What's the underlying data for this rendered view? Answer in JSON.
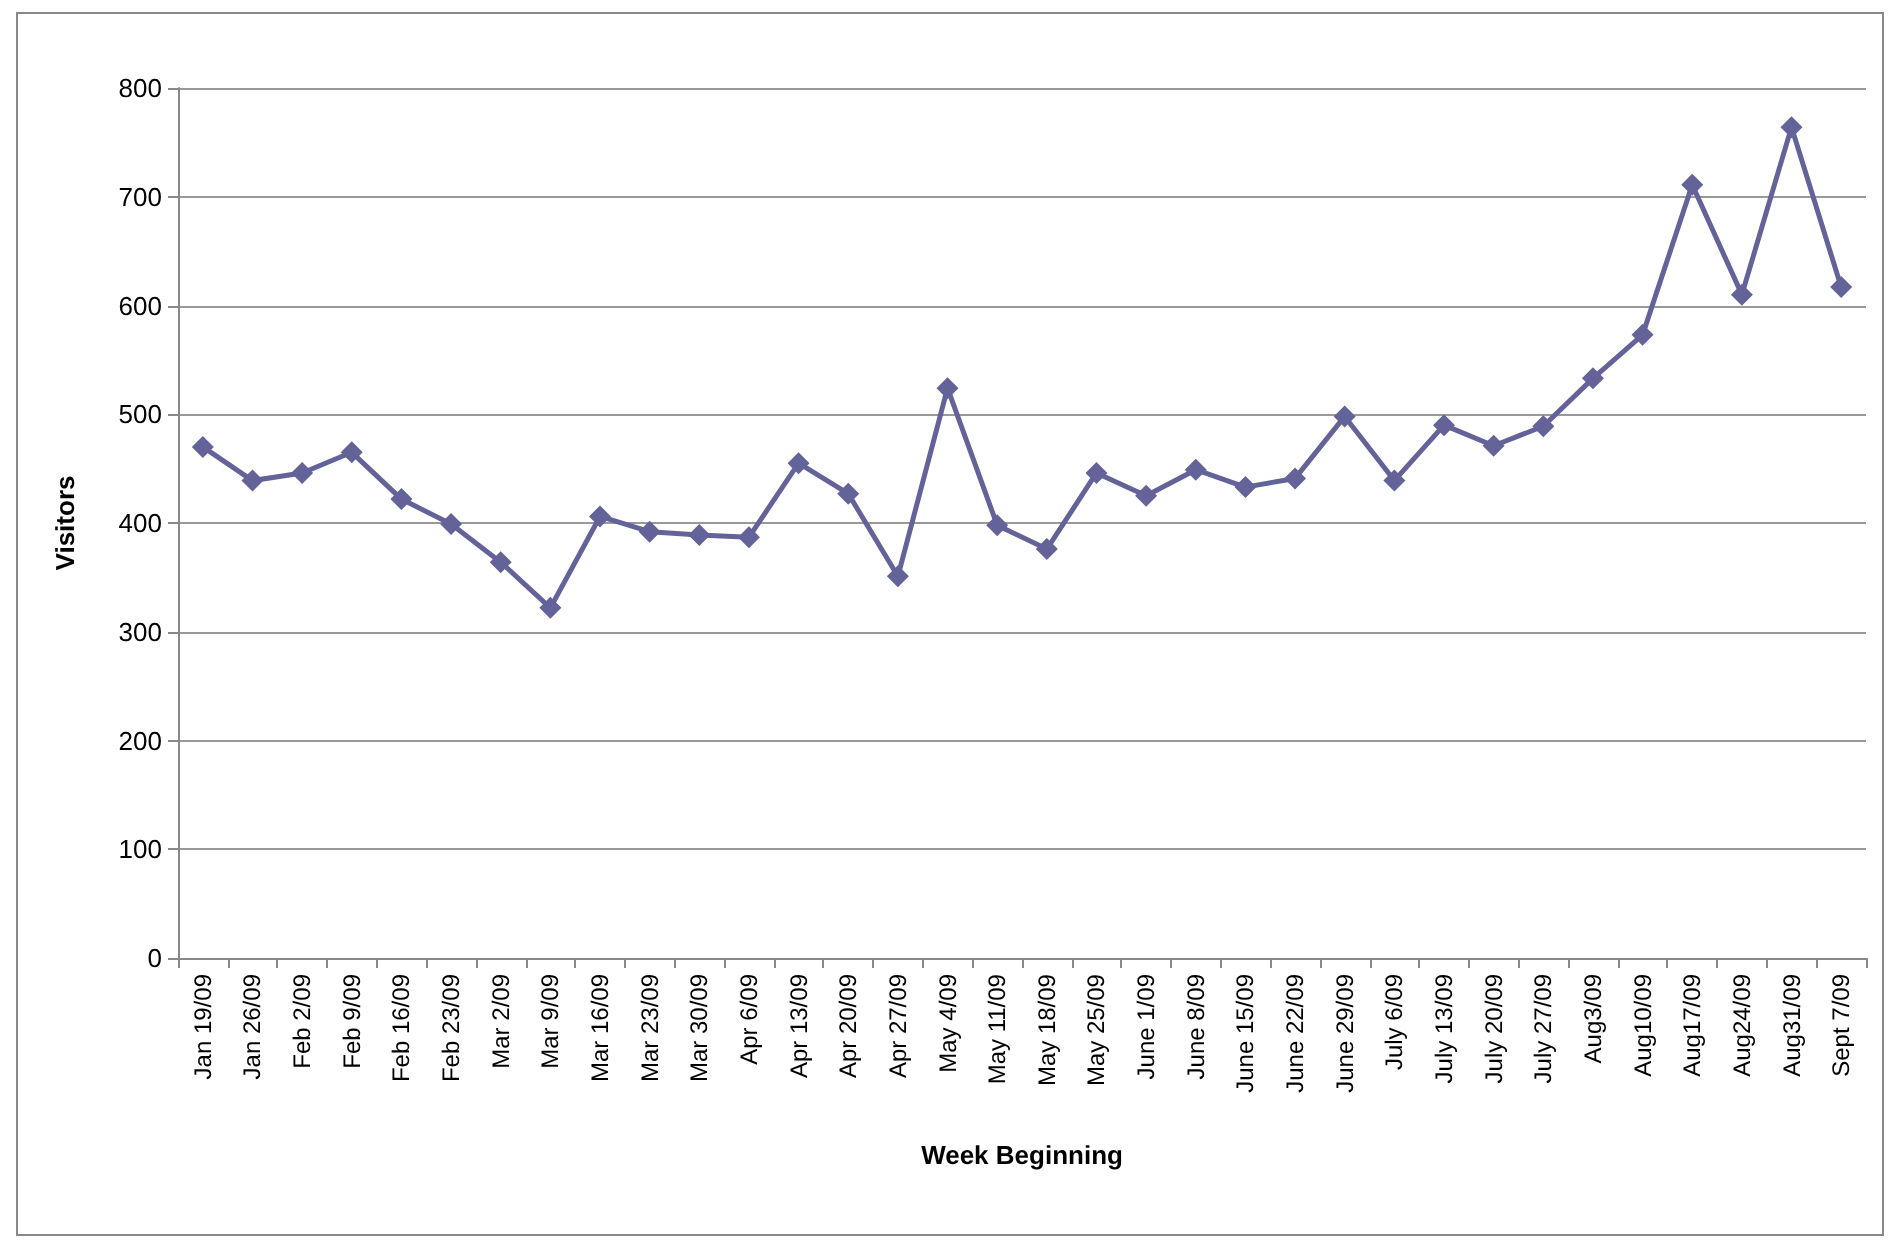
{
  "chart_data": {
    "type": "line",
    "xlabel": "Week Beginning",
    "ylabel": "Visitors",
    "categories": [
      "Jan 19/09",
      "Jan 26/09",
      "Feb 2/09",
      "Feb 9/09",
      "Feb 16/09",
      "Feb 23/09",
      "Mar 2/09",
      "Mar 9/09",
      "Mar 16/09",
      "Mar 23/09",
      "Mar 30/09",
      "Apr 6/09",
      "Apr 13/09",
      "Apr 20/09",
      "Apr 27/09",
      "May 4/09",
      "May 11/09",
      "May 18/09",
      "May 25/09",
      "June 1/09",
      "June 8/09",
      "June 15/09",
      "June 22/09",
      "June 29/09",
      "July 6/09",
      "July 13/09",
      "July 20/09",
      "July 27/09",
      "Aug3/09",
      "Aug10/09",
      "Aug17/09",
      "Aug24/09",
      "Aug31/09",
      "Sept 7/09"
    ],
    "series": [
      {
        "color": "#636399",
        "values": [
          470,
          439,
          446,
          465,
          422,
          399,
          364,
          322,
          406,
          392,
          389,
          387,
          455,
          427,
          351,
          524,
          398,
          376,
          446,
          425,
          449,
          433,
          441,
          498,
          439,
          490,
          471,
          489,
          533,
          573,
          711,
          610,
          764,
          617
        ]
      }
    ],
    "ylim": [
      0,
      800
    ],
    "yticks": [
      0,
      100,
      200,
      300,
      400,
      500,
      600,
      700,
      800
    ],
    "grid": "y",
    "marker": "diamond",
    "line_style": "solid"
  }
}
